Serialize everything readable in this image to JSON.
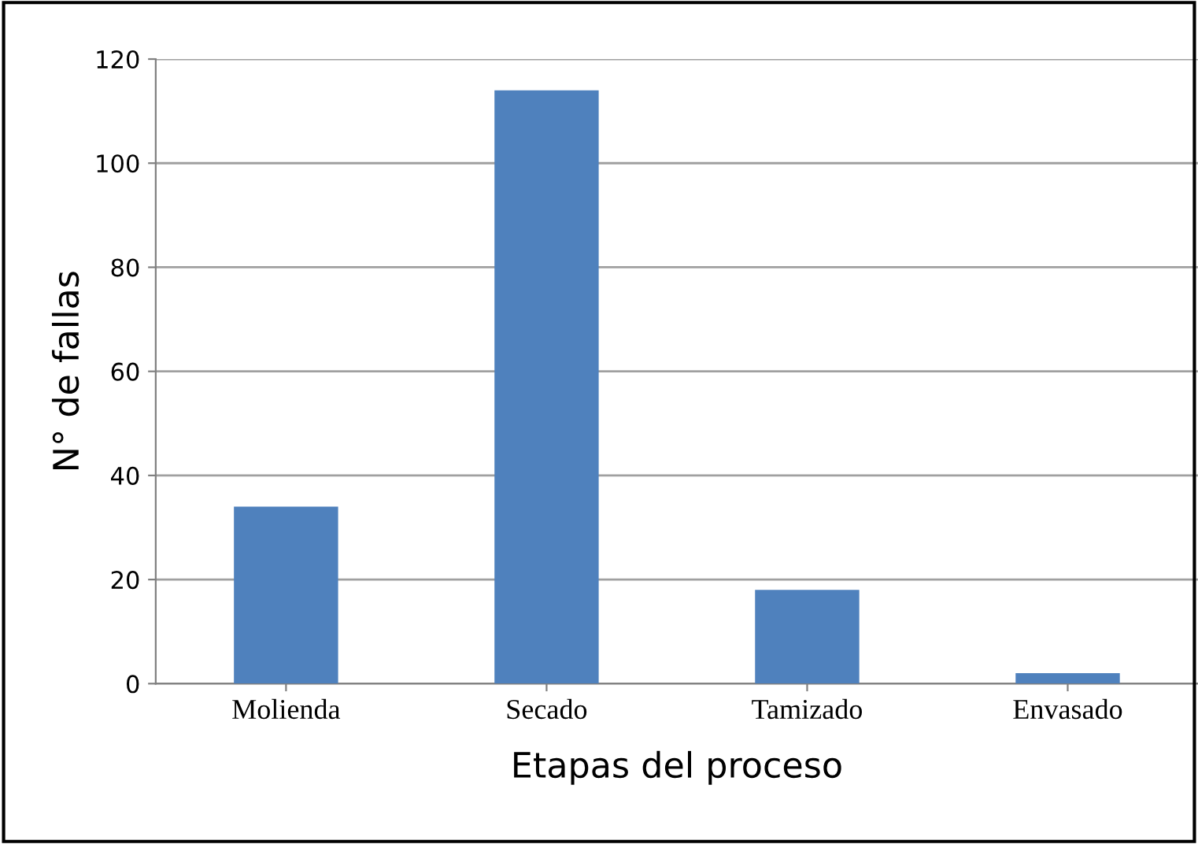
{
  "chart_data": {
    "type": "bar",
    "xlabel": "Etapas del proceso",
    "ylabel": "N° de fallas",
    "categories": [
      "Molienda",
      "Secado",
      "Tamizado",
      "Envasado"
    ],
    "values": [
      34,
      114,
      18,
      2
    ],
    "color": "#4f81bd",
    "ylim": [
      0,
      120
    ],
    "yticks": [
      0,
      20,
      40,
      60,
      80,
      100,
      120
    ],
    "grid": "y"
  }
}
